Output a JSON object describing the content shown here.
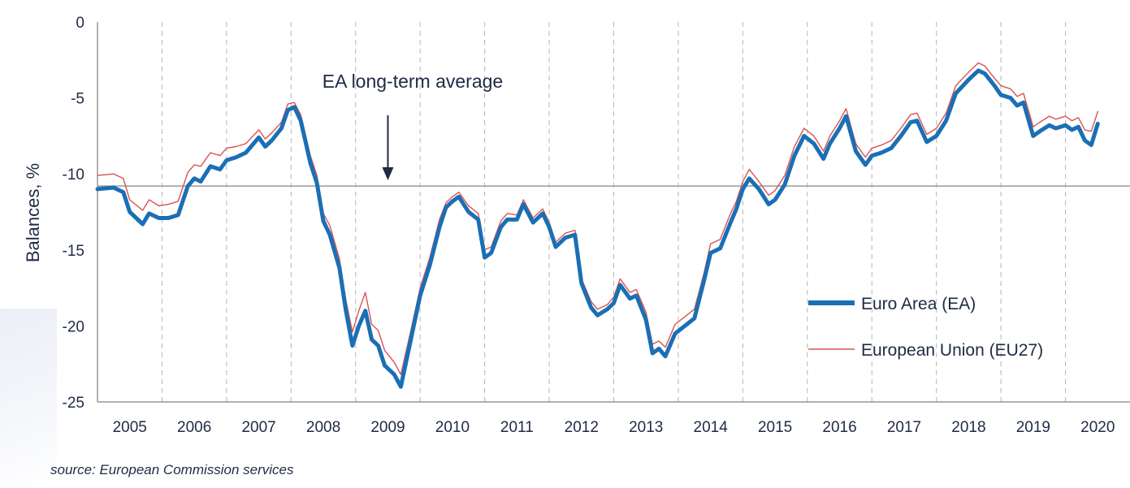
{
  "colors": {
    "ea": "#1a6fb5",
    "eu": "#d9534f",
    "axis": "#808080",
    "text": "#1f2a44"
  },
  "source": "source: European Commission services",
  "chart_data": {
    "type": "line",
    "ylabel": "Balances, %",
    "ylim": [
      -25,
      0
    ],
    "yticks": [
      0,
      -5,
      -10,
      -15,
      -20,
      -25
    ],
    "xlim": [
      2004.5,
      2020.5
    ],
    "xticks": [
      "2005",
      "2006",
      "2007",
      "2008",
      "2009",
      "2010",
      "2011",
      "2012",
      "2013",
      "2014",
      "2015",
      "2016",
      "2017",
      "2018",
      "2019",
      "2020"
    ],
    "reference_line": {
      "value": -10.8
    },
    "annotation": {
      "text": "EA long-term average",
      "arrow_x": 2009.0
    },
    "legend_position": "bottom-right",
    "series": [
      {
        "name": "Euro Area (EA)",
        "values": [
          [
            2004.5,
            -11.0
          ],
          [
            2004.75,
            -10.9
          ],
          [
            2004.9,
            -11.2
          ],
          [
            2005.0,
            -12.5
          ],
          [
            2005.2,
            -13.3
          ],
          [
            2005.3,
            -12.6
          ],
          [
            2005.45,
            -12.9
          ],
          [
            2005.6,
            -12.9
          ],
          [
            2005.75,
            -12.7
          ],
          [
            2005.9,
            -10.8
          ],
          [
            2006.0,
            -10.3
          ],
          [
            2006.1,
            -10.5
          ],
          [
            2006.25,
            -9.5
          ],
          [
            2006.4,
            -9.7
          ],
          [
            2006.5,
            -9.1
          ],
          [
            2006.65,
            -8.9
          ],
          [
            2006.8,
            -8.6
          ],
          [
            2007.0,
            -7.6
          ],
          [
            2007.1,
            -8.2
          ],
          [
            2007.2,
            -7.8
          ],
          [
            2007.35,
            -7.0
          ],
          [
            2007.45,
            -5.8
          ],
          [
            2007.55,
            -5.6
          ],
          [
            2007.65,
            -6.5
          ],
          [
            2007.8,
            -9.3
          ],
          [
            2007.9,
            -10.6
          ],
          [
            2008.0,
            -13.1
          ],
          [
            2008.1,
            -14.0
          ],
          [
            2008.25,
            -16.2
          ],
          [
            2008.35,
            -19.0
          ],
          [
            2008.45,
            -21.3
          ],
          [
            2008.55,
            -20.0
          ],
          [
            2008.65,
            -19.0
          ],
          [
            2008.75,
            -20.9
          ],
          [
            2008.85,
            -21.3
          ],
          [
            2008.95,
            -22.6
          ],
          [
            2009.1,
            -23.2
          ],
          [
            2009.2,
            -24.0
          ],
          [
            2009.35,
            -21.0
          ],
          [
            2009.5,
            -18.0
          ],
          [
            2009.65,
            -16.0
          ],
          [
            2009.8,
            -13.5
          ],
          [
            2009.9,
            -12.2
          ],
          [
            2010.0,
            -11.8
          ],
          [
            2010.1,
            -11.5
          ],
          [
            2010.25,
            -12.5
          ],
          [
            2010.4,
            -13.0
          ],
          [
            2010.5,
            -15.5
          ],
          [
            2010.6,
            -15.2
          ],
          [
            2010.75,
            -13.5
          ],
          [
            2010.85,
            -13.0
          ],
          [
            2011.0,
            -13.0
          ],
          [
            2011.1,
            -12.0
          ],
          [
            2011.25,
            -13.2
          ],
          [
            2011.4,
            -12.6
          ],
          [
            2011.5,
            -13.5
          ],
          [
            2011.6,
            -14.8
          ],
          [
            2011.75,
            -14.2
          ],
          [
            2011.9,
            -14.0
          ],
          [
            2012.0,
            -17.2
          ],
          [
            2012.15,
            -18.8
          ],
          [
            2012.25,
            -19.3
          ],
          [
            2012.4,
            -18.9
          ],
          [
            2012.5,
            -18.5
          ],
          [
            2012.6,
            -17.3
          ],
          [
            2012.75,
            -18.2
          ],
          [
            2012.85,
            -18.0
          ],
          [
            2013.0,
            -19.6
          ],
          [
            2013.1,
            -21.8
          ],
          [
            2013.2,
            -21.5
          ],
          [
            2013.3,
            -22.0
          ],
          [
            2013.45,
            -20.5
          ],
          [
            2013.6,
            -20.0
          ],
          [
            2013.75,
            -19.5
          ],
          [
            2013.9,
            -17.0
          ],
          [
            2014.0,
            -15.2
          ],
          [
            2014.15,
            -14.9
          ],
          [
            2014.3,
            -13.3
          ],
          [
            2014.4,
            -12.3
          ],
          [
            2014.5,
            -11.0
          ],
          [
            2014.6,
            -10.3
          ],
          [
            2014.75,
            -11.0
          ],
          [
            2014.9,
            -12.0
          ],
          [
            2015.0,
            -11.7
          ],
          [
            2015.15,
            -10.7
          ],
          [
            2015.3,
            -8.8
          ],
          [
            2015.45,
            -7.5
          ],
          [
            2015.6,
            -8.0
          ],
          [
            2015.75,
            -9.0
          ],
          [
            2015.85,
            -8.0
          ],
          [
            2016.0,
            -7.0
          ],
          [
            2016.1,
            -6.2
          ],
          [
            2016.25,
            -8.5
          ],
          [
            2016.4,
            -9.4
          ],
          [
            2016.5,
            -8.8
          ],
          [
            2016.65,
            -8.6
          ],
          [
            2016.8,
            -8.3
          ],
          [
            2016.95,
            -7.5
          ],
          [
            2017.1,
            -6.6
          ],
          [
            2017.2,
            -6.5
          ],
          [
            2017.35,
            -7.9
          ],
          [
            2017.5,
            -7.5
          ],
          [
            2017.65,
            -6.5
          ],
          [
            2017.8,
            -4.7
          ],
          [
            2018.0,
            -3.8
          ],
          [
            2018.15,
            -3.2
          ],
          [
            2018.25,
            -3.4
          ],
          [
            2018.4,
            -4.2
          ],
          [
            2018.5,
            -4.8
          ],
          [
            2018.65,
            -5.0
          ],
          [
            2018.75,
            -5.5
          ],
          [
            2018.85,
            -5.3
          ],
          [
            2019.0,
            -7.5
          ],
          [
            2019.1,
            -7.2
          ],
          [
            2019.25,
            -6.8
          ],
          [
            2019.35,
            -7.0
          ],
          [
            2019.5,
            -6.8
          ],
          [
            2019.6,
            -7.1
          ],
          [
            2019.7,
            -6.9
          ],
          [
            2019.8,
            -7.8
          ],
          [
            2019.9,
            -8.1
          ],
          [
            2020.0,
            -6.7
          ]
        ]
      },
      {
        "name": "European Union (EU27)",
        "values": [
          [
            2004.5,
            -10.1
          ],
          [
            2004.75,
            -10.0
          ],
          [
            2004.9,
            -10.3
          ],
          [
            2005.0,
            -11.7
          ],
          [
            2005.2,
            -12.4
          ],
          [
            2005.3,
            -11.7
          ],
          [
            2005.45,
            -12.1
          ],
          [
            2005.6,
            -12.0
          ],
          [
            2005.75,
            -11.8
          ],
          [
            2005.9,
            -9.9
          ],
          [
            2006.0,
            -9.4
          ],
          [
            2006.1,
            -9.5
          ],
          [
            2006.25,
            -8.6
          ],
          [
            2006.4,
            -8.8
          ],
          [
            2006.5,
            -8.3
          ],
          [
            2006.65,
            -8.2
          ],
          [
            2006.8,
            -8.0
          ],
          [
            2007.0,
            -7.1
          ],
          [
            2007.1,
            -7.7
          ],
          [
            2007.2,
            -7.3
          ],
          [
            2007.35,
            -6.6
          ],
          [
            2007.45,
            -5.4
          ],
          [
            2007.55,
            -5.3
          ],
          [
            2007.65,
            -6.1
          ],
          [
            2007.8,
            -8.8
          ],
          [
            2007.9,
            -10.1
          ],
          [
            2008.0,
            -12.6
          ],
          [
            2008.1,
            -13.4
          ],
          [
            2008.25,
            -15.6
          ],
          [
            2008.35,
            -18.3
          ],
          [
            2008.45,
            -20.4
          ],
          [
            2008.55,
            -19.0
          ],
          [
            2008.65,
            -17.8
          ],
          [
            2008.75,
            -19.9
          ],
          [
            2008.85,
            -20.3
          ],
          [
            2008.95,
            -21.6
          ],
          [
            2009.1,
            -22.4
          ],
          [
            2009.2,
            -23.2
          ],
          [
            2009.35,
            -20.4
          ],
          [
            2009.5,
            -17.5
          ],
          [
            2009.65,
            -15.5
          ],
          [
            2009.8,
            -13.0
          ],
          [
            2009.9,
            -11.9
          ],
          [
            2010.0,
            -11.5
          ],
          [
            2010.1,
            -11.2
          ],
          [
            2010.25,
            -12.1
          ],
          [
            2010.4,
            -12.6
          ],
          [
            2010.5,
            -15.0
          ],
          [
            2010.6,
            -14.8
          ],
          [
            2010.75,
            -13.1
          ],
          [
            2010.85,
            -12.6
          ],
          [
            2011.0,
            -12.7
          ],
          [
            2011.1,
            -11.7
          ],
          [
            2011.25,
            -12.9
          ],
          [
            2011.4,
            -12.3
          ],
          [
            2011.5,
            -13.2
          ],
          [
            2011.6,
            -14.5
          ],
          [
            2011.75,
            -13.9
          ],
          [
            2011.9,
            -13.7
          ],
          [
            2012.0,
            -16.9
          ],
          [
            2012.15,
            -18.4
          ],
          [
            2012.25,
            -18.9
          ],
          [
            2012.4,
            -18.6
          ],
          [
            2012.5,
            -18.1
          ],
          [
            2012.6,
            -16.9
          ],
          [
            2012.75,
            -17.8
          ],
          [
            2012.85,
            -17.6
          ],
          [
            2013.0,
            -19.1
          ],
          [
            2013.1,
            -21.2
          ],
          [
            2013.2,
            -21.0
          ],
          [
            2013.3,
            -21.4
          ],
          [
            2013.45,
            -19.9
          ],
          [
            2013.6,
            -19.4
          ],
          [
            2013.75,
            -18.9
          ],
          [
            2013.9,
            -16.5
          ],
          [
            2014.0,
            -14.6
          ],
          [
            2014.15,
            -14.3
          ],
          [
            2014.3,
            -12.7
          ],
          [
            2014.4,
            -11.8
          ],
          [
            2014.5,
            -10.5
          ],
          [
            2014.6,
            -9.7
          ],
          [
            2014.75,
            -10.5
          ],
          [
            2014.9,
            -11.4
          ],
          [
            2015.0,
            -11.1
          ],
          [
            2015.15,
            -10.1
          ],
          [
            2015.3,
            -8.2
          ],
          [
            2015.45,
            -7.0
          ],
          [
            2015.6,
            -7.5
          ],
          [
            2015.75,
            -8.5
          ],
          [
            2015.85,
            -7.5
          ],
          [
            2016.0,
            -6.5
          ],
          [
            2016.1,
            -5.7
          ],
          [
            2016.25,
            -8.0
          ],
          [
            2016.4,
            -8.9
          ],
          [
            2016.5,
            -8.3
          ],
          [
            2016.65,
            -8.1
          ],
          [
            2016.8,
            -7.8
          ],
          [
            2016.95,
            -7.0
          ],
          [
            2017.1,
            -6.1
          ],
          [
            2017.2,
            -6.0
          ],
          [
            2017.35,
            -7.4
          ],
          [
            2017.5,
            -7.0
          ],
          [
            2017.65,
            -6.0
          ],
          [
            2017.8,
            -4.2
          ],
          [
            2018.0,
            -3.3
          ],
          [
            2018.15,
            -2.7
          ],
          [
            2018.25,
            -2.9
          ],
          [
            2018.4,
            -3.7
          ],
          [
            2018.5,
            -4.2
          ],
          [
            2018.65,
            -4.4
          ],
          [
            2018.75,
            -4.9
          ],
          [
            2018.85,
            -4.7
          ],
          [
            2019.0,
            -6.9
          ],
          [
            2019.1,
            -6.6
          ],
          [
            2019.25,
            -6.2
          ],
          [
            2019.35,
            -6.4
          ],
          [
            2019.5,
            -6.2
          ],
          [
            2019.6,
            -6.5
          ],
          [
            2019.7,
            -6.3
          ],
          [
            2019.8,
            -7.1
          ],
          [
            2019.9,
            -7.2
          ],
          [
            2020.0,
            -5.9
          ]
        ]
      }
    ]
  }
}
